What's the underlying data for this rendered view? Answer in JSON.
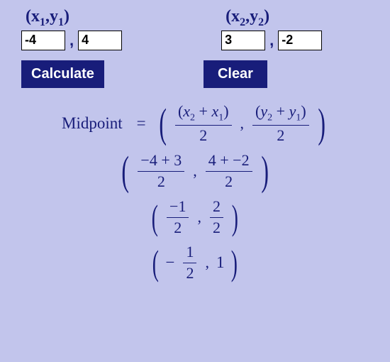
{
  "colors": {
    "background": "#c2c5ec",
    "text": "#181d7a",
    "button_bg": "#181d7a",
    "button_text": "#ffffff",
    "input_bg": "#ffffff"
  },
  "point1": {
    "label_x": "x",
    "label_y": "y",
    "sub": "1",
    "x_value": "-4",
    "y_value": "4"
  },
  "point2": {
    "label_x": "x",
    "label_y": "y",
    "sub": "2",
    "x_value": "3",
    "y_value": "-2"
  },
  "buttons": {
    "calculate": "Calculate",
    "clear": "Clear"
  },
  "math": {
    "midpoint_label": "Midpoint",
    "equals": "=",
    "comma": ",",
    "line1": {
      "frac1_num": "(x₂ + x₁)",
      "frac1_den": "2",
      "frac2_num": "(y₂ + y₁)",
      "frac2_den": "2"
    },
    "line2": {
      "frac1_num": "−4 + 3",
      "frac1_den": "2",
      "frac2_num": "4 + −2",
      "frac2_den": "2"
    },
    "line3": {
      "frac1_num": "−1",
      "frac1_den": "2",
      "frac2_num": "2",
      "frac2_den": "2"
    },
    "line4": {
      "neg": "−",
      "frac1_num": "1",
      "frac1_den": "2",
      "result2": "1"
    }
  }
}
